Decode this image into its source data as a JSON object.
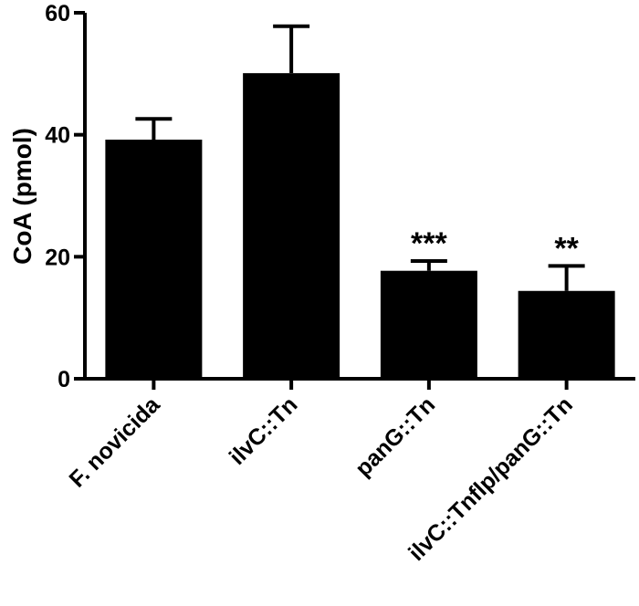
{
  "chart_data": {
    "type": "bar",
    "categories": [
      "F. novicida",
      "ilvC::Tn",
      "panG::Tn",
      "ilvC::Tnflp/panG::Tn"
    ],
    "series": [
      {
        "values": [
          39.2,
          50.1,
          17.7,
          14.4
        ],
        "errors": [
          3.4,
          7.7,
          1.6,
          4.1
        ]
      }
    ],
    "annotations": [
      "",
      "",
      "***",
      "**"
    ],
    "ylabel": "CoA (pmol)",
    "xlabel": "",
    "title": "",
    "ylim": [
      0,
      60
    ],
    "yticks": [
      "0",
      "20",
      "40",
      "60"
    ],
    "colors": {
      "bar": "#000000",
      "axis": "#000000"
    },
    "grid": false,
    "legend": "none"
  }
}
